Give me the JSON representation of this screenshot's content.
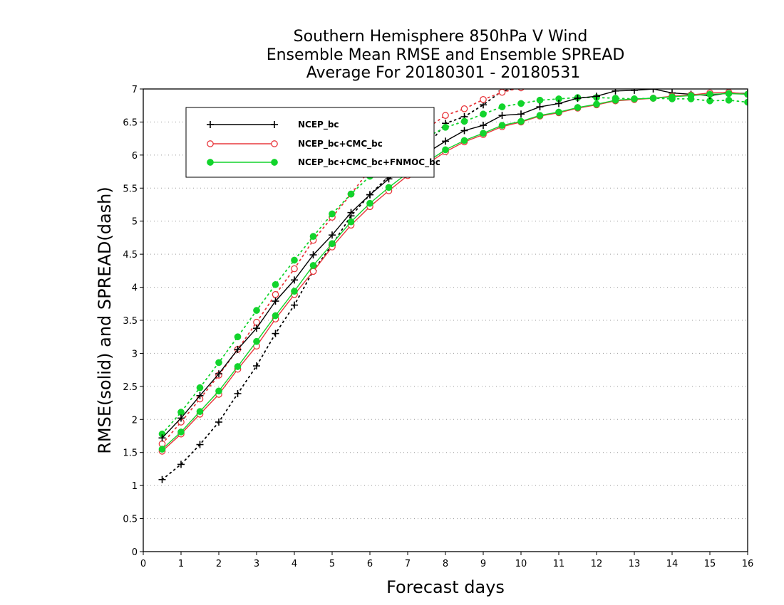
{
  "chart_data": {
    "type": "line",
    "title_lines": [
      "Southern Hemisphere 850hPa V Wind",
      "Ensemble Mean RMSE and Ensemble SPREAD",
      "Average For 20180301 - 20180531"
    ],
    "xlabel": "Forecast days",
    "ylabel": "RMSE(solid) and SPREAD(dash)",
    "xlim": [
      0,
      16
    ],
    "ylim": [
      0,
      7
    ],
    "xticks": [
      "0",
      "1",
      "2",
      "3",
      "4",
      "5",
      "6",
      "7",
      "8",
      "9",
      "10",
      "11",
      "12",
      "13",
      "14",
      "15",
      "16"
    ],
    "yticks": [
      "0",
      "0.5",
      "1",
      "1.5",
      "2",
      "2.5",
      "3",
      "3.5",
      "4",
      "4.5",
      "5",
      "5.5",
      "6",
      "6.5",
      "7"
    ],
    "x": [
      0.5,
      1,
      1.5,
      2,
      2.5,
      3,
      3.5,
      4,
      4.5,
      5,
      5.5,
      6,
      6.5,
      7,
      7.5,
      8,
      8.5,
      9,
      9.5,
      10,
      10.5,
      11,
      11.5,
      12,
      12.5,
      13,
      13.5,
      14,
      14.5,
      15,
      15.5,
      16
    ],
    "grid": "dotted horizontal",
    "legend_position": "top-left",
    "series": [
      {
        "name": "NCEP_bc",
        "kind": "rmse",
        "color": "#000000",
        "marker": "plus",
        "values": [
          1.72,
          2.02,
          2.36,
          2.69,
          3.06,
          3.38,
          3.79,
          4.11,
          4.49,
          4.79,
          5.13,
          5.4,
          5.64,
          5.84,
          6.03,
          6.21,
          6.37,
          6.45,
          6.6,
          6.62,
          6.73,
          6.78,
          6.86,
          6.89,
          6.97,
          6.98,
          7.0,
          6.94,
          6.92,
          6.9,
          6.94,
          6.93
        ]
      },
      {
        "name": "NCEP_bc+CMC_bc",
        "kind": "rmse",
        "color": "#e8383d",
        "marker": "open-circle",
        "values": [
          1.52,
          1.78,
          2.08,
          2.38,
          2.76,
          3.11,
          3.52,
          3.89,
          4.24,
          4.61,
          4.94,
          5.22,
          5.46,
          5.69,
          5.86,
          6.05,
          6.2,
          6.31,
          6.43,
          6.5,
          6.59,
          6.64,
          6.71,
          6.76,
          6.82,
          6.84,
          6.86,
          6.89,
          6.91,
          6.94,
          6.95,
          6.92
        ]
      },
      {
        "name": "NCEP_bc+CMC_bc+FNMOC_bc",
        "kind": "rmse",
        "color": "#12d42c",
        "marker": "filled-circle",
        "values": [
          1.55,
          1.81,
          2.12,
          2.43,
          2.8,
          3.18,
          3.57,
          3.94,
          4.33,
          4.66,
          4.99,
          5.27,
          5.51,
          5.73,
          5.89,
          6.08,
          6.22,
          6.33,
          6.45,
          6.51,
          6.6,
          6.65,
          6.72,
          6.77,
          6.83,
          6.85,
          6.86,
          6.88,
          6.9,
          6.92,
          6.93,
          6.92
        ]
      },
      {
        "name": "",
        "kind": "spread",
        "color": "#000000",
        "marker": "plus",
        "values": [
          1.09,
          1.32,
          1.62,
          1.96,
          2.39,
          2.81,
          3.3,
          3.73,
          4.25,
          4.64,
          5.08,
          5.4,
          5.68,
          5.92,
          6.12,
          6.48,
          6.58,
          6.76,
          6.97,
          7.02,
          7.08,
          7.1,
          7.12,
          7.13,
          7.14,
          7.14,
          7.15,
          7.15,
          7.16,
          7.16,
          7.17,
          7.17
        ]
      },
      {
        "name": "",
        "kind": "spread",
        "color": "#e8383d",
        "marker": "open-circle",
        "values": [
          1.63,
          1.96,
          2.31,
          2.67,
          3.06,
          3.47,
          3.89,
          4.28,
          4.71,
          5.06,
          5.41,
          5.78,
          6.02,
          6.22,
          6.4,
          6.6,
          6.7,
          6.84,
          6.95,
          7.02,
          7.06,
          7.09,
          7.11,
          7.12,
          7.13,
          7.14,
          7.15,
          7.15,
          7.16,
          7.16,
          7.17,
          7.17
        ]
      },
      {
        "name": "",
        "kind": "spread",
        "color": "#12d42c",
        "marker": "filled-circle",
        "values": [
          1.78,
          2.11,
          2.48,
          2.86,
          3.25,
          3.65,
          4.04,
          4.41,
          4.77,
          5.11,
          5.41,
          5.68,
          5.92,
          6.1,
          6.27,
          6.42,
          6.51,
          6.62,
          6.73,
          6.78,
          6.83,
          6.85,
          6.87,
          6.87,
          6.86,
          6.85,
          6.86,
          6.85,
          6.85,
          6.82,
          6.83,
          6.8
        ]
      }
    ]
  }
}
